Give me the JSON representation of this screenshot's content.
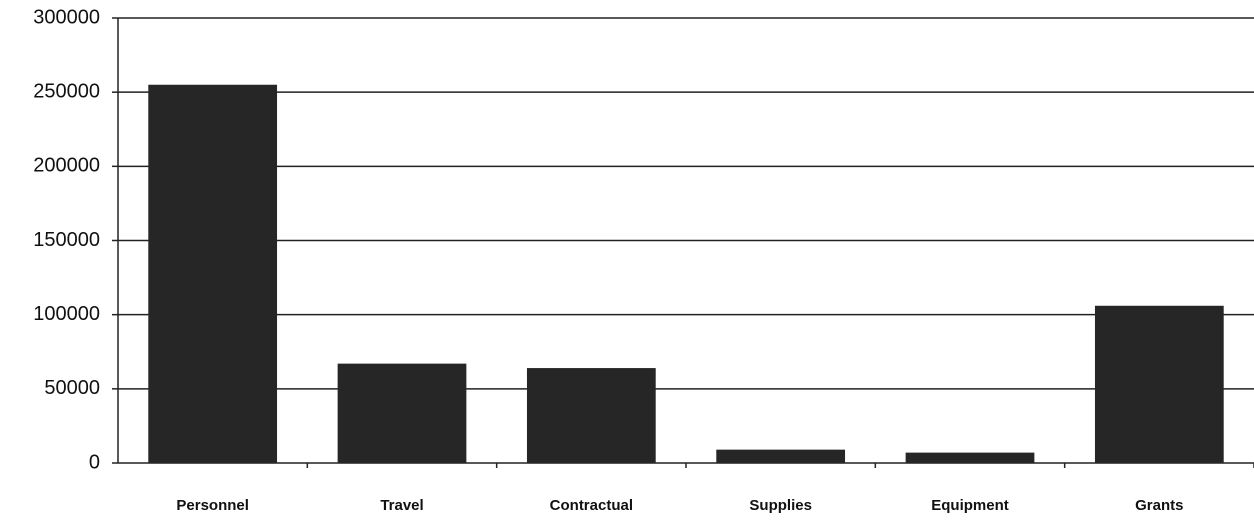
{
  "chart_data": {
    "type": "bar",
    "categories": [
      "Personnel",
      "Travel",
      "Contractual",
      "Supplies",
      "Equipment",
      "Grants"
    ],
    "values": [
      255000,
      67000,
      64000,
      9000,
      7000,
      106000
    ],
    "color": "#262626",
    "ylim": [
      0,
      300000
    ],
    "yticks": [
      0,
      50000,
      100000,
      150000,
      200000,
      250000,
      300000
    ],
    "grid": true
  }
}
